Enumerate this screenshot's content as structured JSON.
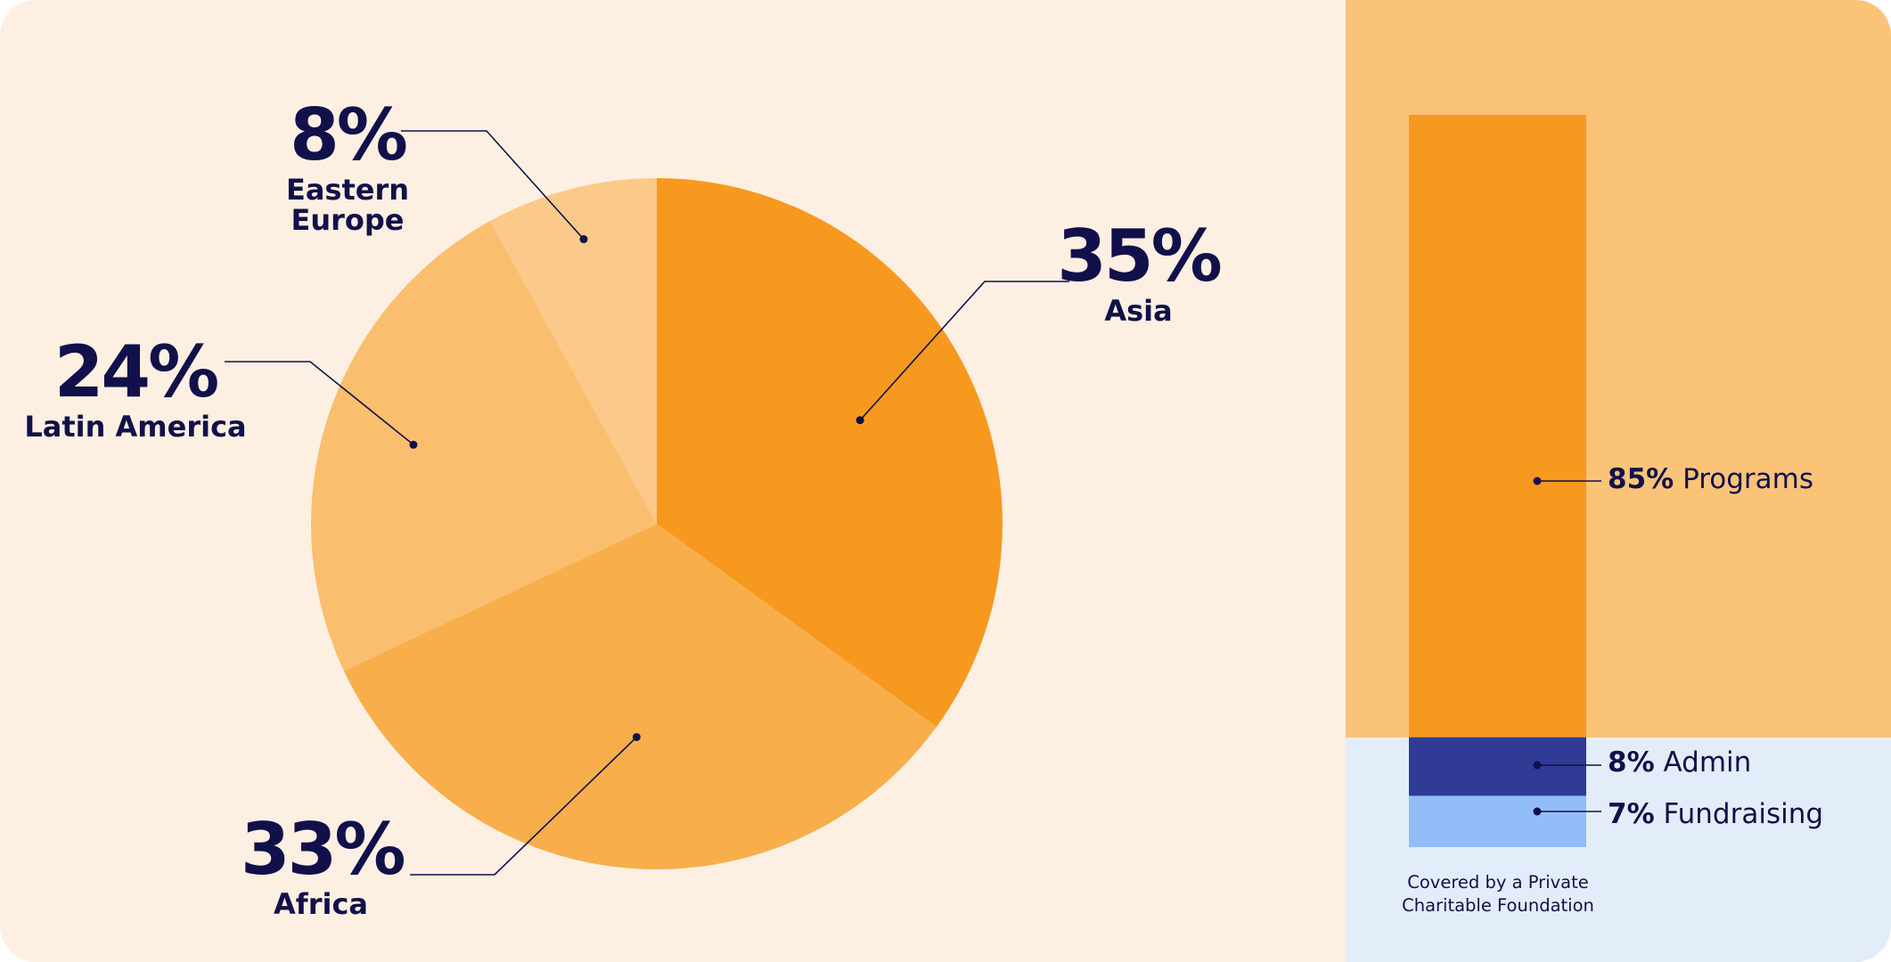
{
  "chart_data": [
    {
      "type": "pie",
      "slices": [
        {
          "label": "Asia",
          "value": 35,
          "display": "35%",
          "color": "#F7991F"
        },
        {
          "label": "Africa",
          "value": 33,
          "display": "33%",
          "color": "#F8AE4B"
        },
        {
          "label": "Latin America",
          "value": 24,
          "display": "24%",
          "color": "#FABF6E"
        },
        {
          "label": "Eastern Europe",
          "value": 8,
          "display": "8%",
          "color": "#FBC98A"
        }
      ]
    },
    {
      "type": "bar",
      "stacked": true,
      "segments": [
        {
          "label": "Programs",
          "value": 85,
          "display": "85%",
          "color": "#F7991F"
        },
        {
          "label": "Admin",
          "value": 8,
          "display": "8%",
          "color": "#2F3B95"
        },
        {
          "label": "Fundraising",
          "value": 7,
          "display": "7%",
          "color": "#93BDF9"
        }
      ],
      "note": "Covered by a Private Charitable Foundation"
    }
  ],
  "colors": {
    "ink": "#11104A",
    "page_bg": "#FDF0E2",
    "panel_top": "#FAC378",
    "panel_bottom": "#E3EDF9"
  }
}
